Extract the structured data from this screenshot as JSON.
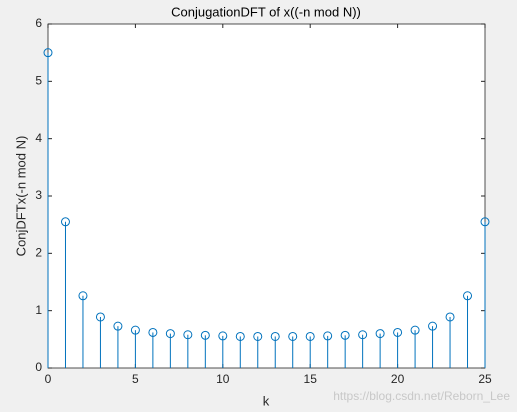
{
  "chart_data": {
    "type": "stem",
    "title": "ConjugationDFT of x((-n mod N))",
    "x_label": "k",
    "y_label": "ConjDFTx(-n mod N)",
    "watermark": "https://blog.csdn.net/Reborn_Lee",
    "x": [
      0,
      1,
      2,
      3,
      4,
      5,
      6,
      7,
      8,
      9,
      10,
      11,
      12,
      13,
      14,
      15,
      16,
      17,
      18,
      19,
      20,
      21,
      22,
      23,
      24,
      25
    ],
    "values": [
      5.5,
      2.55,
      1.26,
      0.89,
      0.73,
      0.66,
      0.62,
      0.6,
      0.58,
      0.57,
      0.56,
      0.55,
      0.55,
      0.55,
      0.55,
      0.55,
      0.56,
      0.57,
      0.58,
      0.6,
      0.62,
      0.66,
      0.73,
      0.89,
      1.26,
      2.55
    ],
    "color": "#0072bd",
    "xlim": [
      0,
      25
    ],
    "xticks": [
      0,
      5,
      10,
      15,
      20,
      25
    ],
    "ylim": [
      0,
      6
    ],
    "yticks": [
      0,
      1,
      2,
      3,
      4,
      5,
      6
    ]
  }
}
